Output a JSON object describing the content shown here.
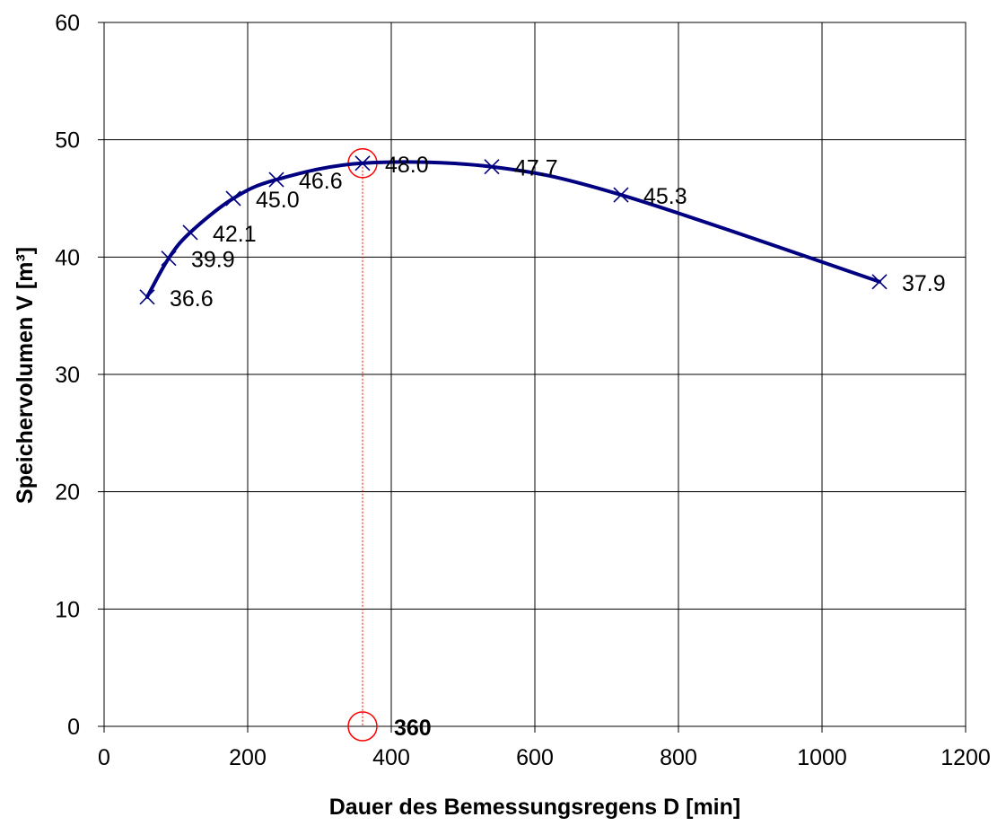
{
  "chart_data": {
    "type": "line",
    "title": "",
    "xlabel": "Dauer des Bemessungsregens  D [min]",
    "ylabel": "Speichervolumen V [m³]",
    "xlim": [
      0,
      1200
    ],
    "ylim": [
      0,
      60
    ],
    "xticks": [
      0,
      200,
      400,
      600,
      800,
      1000,
      1200
    ],
    "yticks": [
      0,
      10,
      20,
      30,
      40,
      50,
      60
    ],
    "grid": true,
    "legend": "none",
    "series": [
      {
        "x": [
          60,
          90,
          120,
          180,
          240,
          360,
          540,
          720,
          1080
        ],
        "y": [
          36.6,
          39.9,
          42.1,
          45.0,
          46.6,
          48.0,
          47.7,
          45.3,
          37.9
        ],
        "labels": [
          "36.6",
          "39.9",
          "42.1",
          "45.0",
          "46.6",
          "48.0",
          "47.7",
          "45.3",
          "37.9"
        ]
      }
    ],
    "highlight": {
      "x": 360,
      "y": 48.0,
      "x_label": "360"
    },
    "colors": {
      "line": "#000080",
      "marker": "#000080",
      "highlight": "#ff0000",
      "grid": "#000000"
    }
  }
}
